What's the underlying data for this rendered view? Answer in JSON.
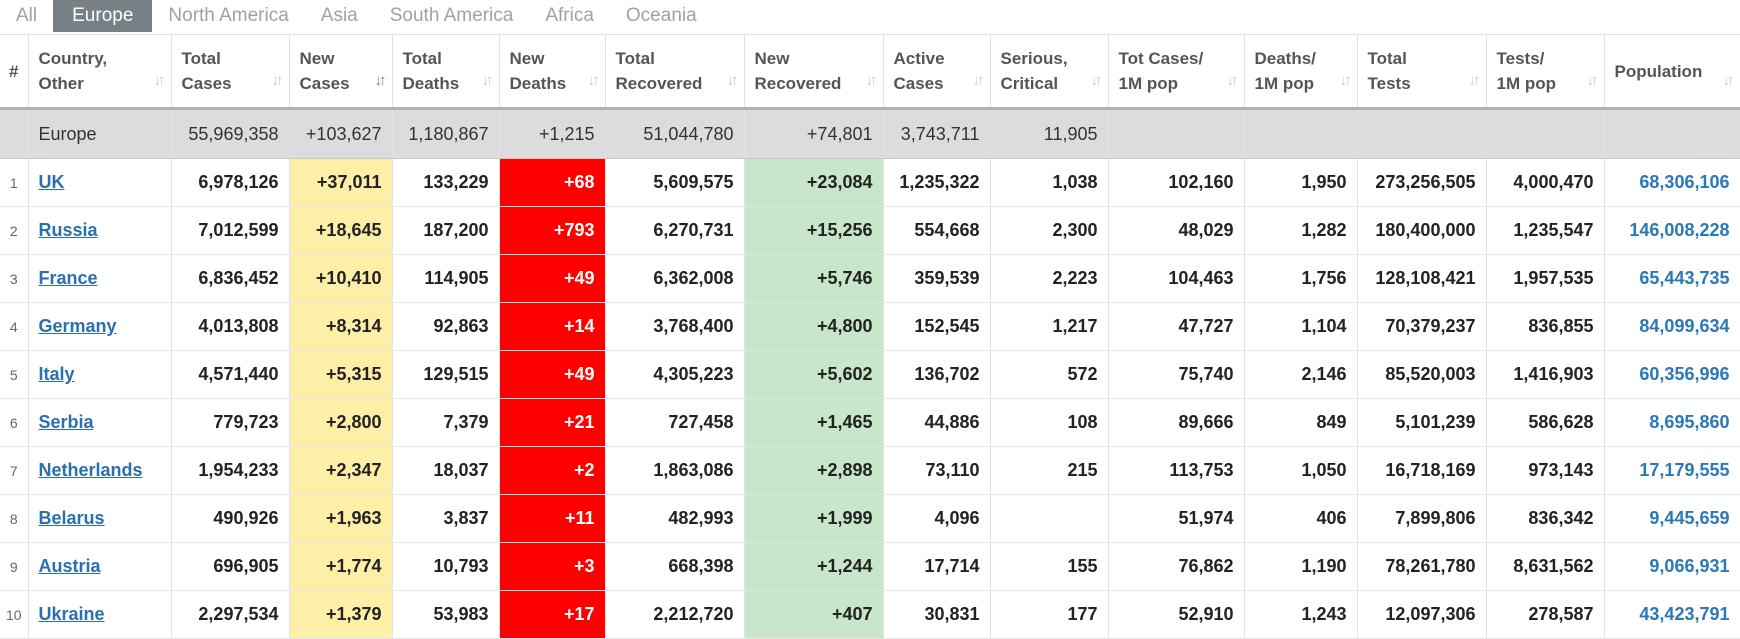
{
  "tabs": [
    "All",
    "Europe",
    "North America",
    "Asia",
    "South America",
    "Africa",
    "Oceania"
  ],
  "active_tab": "Europe",
  "headers": [
    {
      "l1": "#",
      "l2": ""
    },
    {
      "l1": "Country,",
      "l2": "Other"
    },
    {
      "l1": "Total",
      "l2": "Cases"
    },
    {
      "l1": "New",
      "l2": "Cases"
    },
    {
      "l1": "Total",
      "l2": "Deaths"
    },
    {
      "l1": "New",
      "l2": "Deaths"
    },
    {
      "l1": "Total",
      "l2": "Recovered"
    },
    {
      "l1": "New",
      "l2": "Recovered"
    },
    {
      "l1": "Active",
      "l2": "Cases"
    },
    {
      "l1": "Serious,",
      "l2": "Critical"
    },
    {
      "l1": "Tot Cases/",
      "l2": "1M pop"
    },
    {
      "l1": "Deaths/",
      "l2": "1M pop"
    },
    {
      "l1": "Total",
      "l2": "Tests"
    },
    {
      "l1": "Tests/",
      "l2": "1M pop"
    },
    {
      "l1": "",
      "l2": "Population"
    }
  ],
  "total_row": {
    "country": "Europe",
    "total_cases": "55,969,358",
    "new_cases": "+103,627",
    "total_deaths": "1,180,867",
    "new_deaths": "+1,215",
    "total_recovered": "51,044,780",
    "new_recovered": "+74,801",
    "active_cases": "3,743,711",
    "serious": "11,905"
  },
  "rows": [
    {
      "idx": "1",
      "country": "UK",
      "total_cases": "6,978,126",
      "new_cases": "+37,011",
      "total_deaths": "133,229",
      "new_deaths": "+68",
      "total_recovered": "5,609,575",
      "new_recovered": "+23,084",
      "active_cases": "1,235,322",
      "serious": "1,038",
      "cases_1m": "102,160",
      "deaths_1m": "1,950",
      "total_tests": "273,256,505",
      "tests_1m": "4,000,470",
      "population": "68,306,106"
    },
    {
      "idx": "2",
      "country": "Russia",
      "total_cases": "7,012,599",
      "new_cases": "+18,645",
      "total_deaths": "187,200",
      "new_deaths": "+793",
      "total_recovered": "6,270,731",
      "new_recovered": "+15,256",
      "active_cases": "554,668",
      "serious": "2,300",
      "cases_1m": "48,029",
      "deaths_1m": "1,282",
      "total_tests": "180,400,000",
      "tests_1m": "1,235,547",
      "population": "146,008,228"
    },
    {
      "idx": "3",
      "country": "France",
      "total_cases": "6,836,452",
      "new_cases": "+10,410",
      "total_deaths": "114,905",
      "new_deaths": "+49",
      "total_recovered": "6,362,008",
      "new_recovered": "+5,746",
      "active_cases": "359,539",
      "serious": "2,223",
      "cases_1m": "104,463",
      "deaths_1m": "1,756",
      "total_tests": "128,108,421",
      "tests_1m": "1,957,535",
      "population": "65,443,735"
    },
    {
      "idx": "4",
      "country": "Germany",
      "total_cases": "4,013,808",
      "new_cases": "+8,314",
      "total_deaths": "92,863",
      "new_deaths": "+14",
      "total_recovered": "3,768,400",
      "new_recovered": "+4,800",
      "active_cases": "152,545",
      "serious": "1,217",
      "cases_1m": "47,727",
      "deaths_1m": "1,104",
      "total_tests": "70,379,237",
      "tests_1m": "836,855",
      "population": "84,099,634"
    },
    {
      "idx": "5",
      "country": "Italy",
      "total_cases": "4,571,440",
      "new_cases": "+5,315",
      "total_deaths": "129,515",
      "new_deaths": "+49",
      "total_recovered": "4,305,223",
      "new_recovered": "+5,602",
      "active_cases": "136,702",
      "serious": "572",
      "cases_1m": "75,740",
      "deaths_1m": "2,146",
      "total_tests": "85,520,003",
      "tests_1m": "1,416,903",
      "population": "60,356,996"
    },
    {
      "idx": "6",
      "country": "Serbia",
      "total_cases": "779,723",
      "new_cases": "+2,800",
      "total_deaths": "7,379",
      "new_deaths": "+21",
      "total_recovered": "727,458",
      "new_recovered": "+1,465",
      "active_cases": "44,886",
      "serious": "108",
      "cases_1m": "89,666",
      "deaths_1m": "849",
      "total_tests": "5,101,239",
      "tests_1m": "586,628",
      "population": "8,695,860"
    },
    {
      "idx": "7",
      "country": "Netherlands",
      "total_cases": "1,954,233",
      "new_cases": "+2,347",
      "total_deaths": "18,037",
      "new_deaths": "+2",
      "total_recovered": "1,863,086",
      "new_recovered": "+2,898",
      "active_cases": "73,110",
      "serious": "215",
      "cases_1m": "113,753",
      "deaths_1m": "1,050",
      "total_tests": "16,718,169",
      "tests_1m": "973,143",
      "population": "17,179,555"
    },
    {
      "idx": "8",
      "country": "Belarus",
      "total_cases": "490,926",
      "new_cases": "+1,963",
      "total_deaths": "3,837",
      "new_deaths": "+11",
      "total_recovered": "482,993",
      "new_recovered": "+1,999",
      "active_cases": "4,096",
      "serious": "",
      "cases_1m": "51,974",
      "deaths_1m": "406",
      "total_tests": "7,899,806",
      "tests_1m": "836,342",
      "population": "9,445,659"
    },
    {
      "idx": "9",
      "country": "Austria",
      "total_cases": "696,905",
      "new_cases": "+1,774",
      "total_deaths": "10,793",
      "new_deaths": "+3",
      "total_recovered": "668,398",
      "new_recovered": "+1,244",
      "active_cases": "17,714",
      "serious": "155",
      "cases_1m": "76,862",
      "deaths_1m": "1,190",
      "total_tests": "78,261,780",
      "tests_1m": "8,631,562",
      "population": "9,066,931"
    },
    {
      "idx": "10",
      "country": "Ukraine",
      "total_cases": "2,297,534",
      "new_cases": "+1,379",
      "total_deaths": "53,983",
      "new_deaths": "+17",
      "total_recovered": "2,212,720",
      "new_recovered": "+407",
      "active_cases": "30,831",
      "serious": "177",
      "cases_1m": "52,910",
      "deaths_1m": "1,243",
      "total_tests": "12,097,306",
      "tests_1m": "278,587",
      "population": "43,423,791"
    }
  ]
}
